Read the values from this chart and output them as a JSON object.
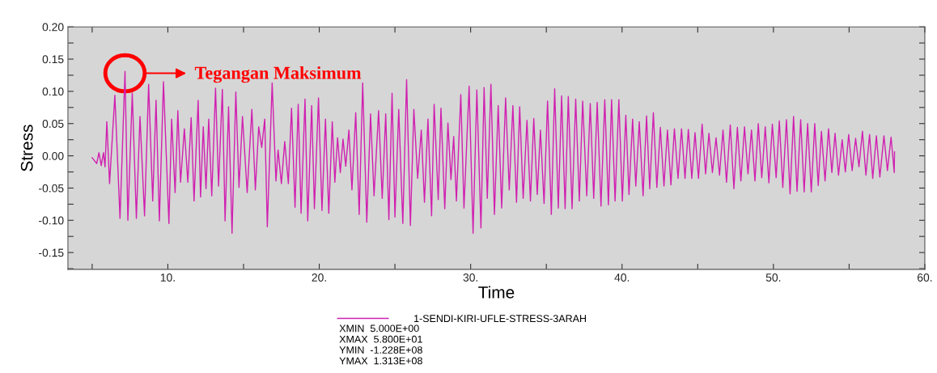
{
  "chart_data": {
    "type": "line",
    "xlabel": "Time",
    "ylabel": "Stress",
    "xlim": [
      3.4,
      60
    ],
    "ylim": [
      -0.176,
      0.2
    ],
    "xticks": [
      {
        "value": 5,
        "label": null
      },
      {
        "value": 10,
        "label": "10."
      },
      {
        "value": 15,
        "label": null
      },
      {
        "value": 20,
        "label": "20."
      },
      {
        "value": 25,
        "label": null
      },
      {
        "value": 30,
        "label": "30."
      },
      {
        "value": 35,
        "label": null
      },
      {
        "value": 40,
        "label": "40."
      },
      {
        "value": 45,
        "label": null
      },
      {
        "value": 50,
        "label": "50."
      },
      {
        "value": 55,
        "label": null
      },
      {
        "value": 60,
        "label": "60."
      }
    ],
    "yticks": [
      {
        "value": -0.175,
        "label": null
      },
      {
        "value": -0.15,
        "label": "-0.15"
      },
      {
        "value": -0.125,
        "label": null
      },
      {
        "value": -0.1,
        "label": "-0.10"
      },
      {
        "value": -0.075,
        "label": null
      },
      {
        "value": -0.05,
        "label": "-0.05"
      },
      {
        "value": -0.025,
        "label": null
      },
      {
        "value": 0,
        "label": "0.00"
      },
      {
        "value": 0.025,
        "label": null
      },
      {
        "value": 0.05,
        "label": "0.05"
      },
      {
        "value": 0.075,
        "label": null
      },
      {
        "value": 0.1,
        "label": "0.10"
      },
      {
        "value": 0.125,
        "label": null
      },
      {
        "value": 0.15,
        "label": "0.15"
      },
      {
        "value": 0.175,
        "label": null
      },
      {
        "value": 0.2,
        "label": "0.20"
      }
    ],
    "grid": false,
    "legend": "bottom",
    "marker": "none",
    "line_style": "solid",
    "annotations": [
      "Tegangan Maksimum",
      "XMIN  5.000E+00",
      "XMAX  5.800E+01",
      "YMIN  -1.228E+08",
      "YMAX  1.313E+08"
    ],
    "series": [
      {
        "name": "1-SENDI-KIRI-UFLE-STRESS-3ARAH",
        "color": "#d020b0",
        "x": [
          5.0,
          5.3,
          5.45,
          5.6,
          5.75,
          5.85,
          5.97,
          6.15,
          6.5,
          6.84,
          7.17,
          7.36,
          7.65,
          7.92,
          8.16,
          8.46,
          8.73,
          9.0,
          9.22,
          9.44,
          9.71,
          10.07,
          10.25,
          10.48,
          10.66,
          10.84,
          11.09,
          11.32,
          11.54,
          11.73,
          12.0,
          12.16,
          12.34,
          12.52,
          12.7,
          12.9,
          13.15,
          13.35,
          13.6,
          13.78,
          14.01,
          14.24,
          14.49,
          14.7,
          14.93,
          15.24,
          15.55,
          15.78,
          16.0,
          16.2,
          16.4,
          16.57,
          16.89,
          17.14,
          17.28,
          17.5,
          17.72,
          17.96,
          18.17,
          18.4,
          18.61,
          18.8,
          19.06,
          19.24,
          19.5,
          19.68,
          19.95,
          20.18,
          20.41,
          20.63,
          20.86,
          21.03,
          21.21,
          21.39,
          21.57,
          21.75,
          21.96,
          22.16,
          22.41,
          22.64,
          22.87,
          23.14,
          23.39,
          23.62,
          23.92,
          24.16,
          24.39,
          24.6,
          24.81,
          25.0,
          25.25,
          25.52,
          25.77,
          26.02,
          26.25,
          26.5,
          26.74,
          26.95,
          27.18,
          27.42,
          27.59,
          27.86,
          28.04,
          28.29,
          28.5,
          28.7,
          28.88,
          29.06,
          29.35,
          29.56,
          29.9,
          30.16,
          30.41,
          30.68,
          30.89,
          31.1,
          31.34,
          31.57,
          31.82,
          32.05,
          32.31,
          32.55,
          32.79,
          33.03,
          33.24,
          33.47,
          33.72,
          33.95,
          34.17,
          34.4,
          34.61,
          34.85,
          35.08,
          35.33,
          35.55,
          35.79,
          36.01,
          36.24,
          36.45,
          36.7,
          36.94,
          37.18,
          37.4,
          37.67,
          37.9,
          38.13,
          38.36,
          38.61,
          38.86,
          39.1,
          39.31,
          39.54,
          39.79,
          40.02,
          40.25,
          40.46,
          40.7,
          40.91,
          41.14,
          41.39,
          41.62,
          41.83,
          42.07,
          42.3,
          42.53,
          42.77,
          43.0,
          43.23,
          43.46,
          43.7,
          43.93,
          44.16,
          44.38,
          44.61,
          44.82,
          45.05,
          45.29,
          45.52,
          45.74,
          45.97,
          46.21,
          46.44,
          46.67,
          46.9,
          47.15,
          47.39,
          47.62,
          47.85,
          48.09,
          48.32,
          48.55,
          48.78,
          49.0,
          49.23,
          49.46,
          49.7,
          49.93,
          50.18,
          50.39,
          50.62,
          50.86,
          51.1,
          51.33,
          51.56,
          51.8,
          52.03,
          52.26,
          52.5,
          52.73,
          52.96,
          53.17,
          53.41,
          53.64,
          53.86,
          54.07,
          54.3,
          54.54,
          54.75,
          54.97,
          55.2,
          55.43,
          55.65,
          55.88,
          56.11,
          56.35,
          56.56,
          56.8,
          57.03,
          57.3,
          57.53,
          57.77,
          57.98,
          58.0
        ],
        "values": [
          -0.003,
          -0.012,
          0.005,
          -0.015,
          0.005,
          -0.017,
          0.053,
          -0.043,
          0.094,
          -0.097,
          0.131,
          -0.1,
          0.097,
          -0.097,
          0.061,
          -0.093,
          0.111,
          -0.07,
          0.086,
          -0.101,
          0.115,
          -0.105,
          0.057,
          -0.057,
          0.07,
          -0.041,
          0.042,
          -0.041,
          0.059,
          -0.07,
          0.086,
          -0.064,
          0.045,
          -0.051,
          0.057,
          -0.062,
          0.105,
          -0.047,
          0.103,
          -0.101,
          0.076,
          -0.12,
          0.099,
          -0.049,
          0.061,
          -0.057,
          0.072,
          -0.053,
          0.045,
          0.013,
          0.057,
          -0.11,
          0.113,
          -0.039,
          0.009,
          -0.043,
          0.022,
          -0.043,
          0.074,
          -0.08,
          0.08,
          -0.089,
          0.088,
          -0.101,
          0.078,
          -0.082,
          0.09,
          -0.085,
          0.057,
          -0.089,
          0.053,
          -0.041,
          0.028,
          -0.026,
          0.026,
          -0.016,
          0.04,
          -0.053,
          0.067,
          -0.091,
          0.113,
          -0.103,
          0.065,
          -0.062,
          0.07,
          -0.066,
          0.065,
          -0.099,
          0.097,
          -0.095,
          0.072,
          -0.105,
          0.118,
          -0.108,
          0.072,
          -0.035,
          0.04,
          -0.072,
          0.057,
          -0.093,
          0.08,
          -0.068,
          0.074,
          -0.082,
          0.051,
          -0.037,
          0.03,
          -0.07,
          0.095,
          -0.081,
          0.108,
          -0.12,
          0.102,
          -0.112,
          0.106,
          -0.066,
          0.111,
          -0.091,
          0.078,
          -0.081,
          0.09,
          -0.053,
          0.078,
          -0.072,
          0.076,
          -0.066,
          0.055,
          -0.07,
          0.058,
          -0.06,
          0.04,
          -0.074,
          0.085,
          -0.091,
          0.104,
          -0.081,
          0.093,
          -0.082,
          0.092,
          -0.082,
          0.088,
          -0.07,
          0.085,
          -0.062,
          0.081,
          -0.066,
          0.083,
          -0.078,
          0.087,
          -0.076,
          0.087,
          -0.07,
          0.087,
          -0.07,
          0.063,
          -0.06,
          0.057,
          -0.047,
          0.053,
          -0.062,
          0.062,
          -0.051,
          0.067,
          -0.049,
          0.044,
          -0.047,
          0.04,
          -0.045,
          0.042,
          -0.035,
          0.042,
          -0.035,
          0.041,
          -0.035,
          0.036,
          -0.035,
          0.049,
          -0.028,
          0.035,
          -0.026,
          0.028,
          -0.03,
          0.04,
          -0.041,
          0.048,
          -0.051,
          0.044,
          -0.039,
          0.045,
          -0.028,
          0.04,
          -0.039,
          0.05,
          -0.034,
          0.045,
          -0.042,
          0.049,
          -0.034,
          0.054,
          -0.049,
          0.056,
          -0.059,
          0.061,
          -0.055,
          0.056,
          -0.056,
          0.05,
          -0.056,
          0.05,
          -0.046,
          0.038,
          -0.039,
          0.042,
          -0.026,
          0.035,
          -0.03,
          0.025,
          -0.025,
          0.033,
          -0.023,
          0.027,
          -0.017,
          0.038,
          -0.03,
          0.033,
          -0.035,
          0.031,
          -0.033,
          0.031,
          -0.023,
          0.029,
          -0.026,
          0.006
        ]
      }
    ]
  }
}
